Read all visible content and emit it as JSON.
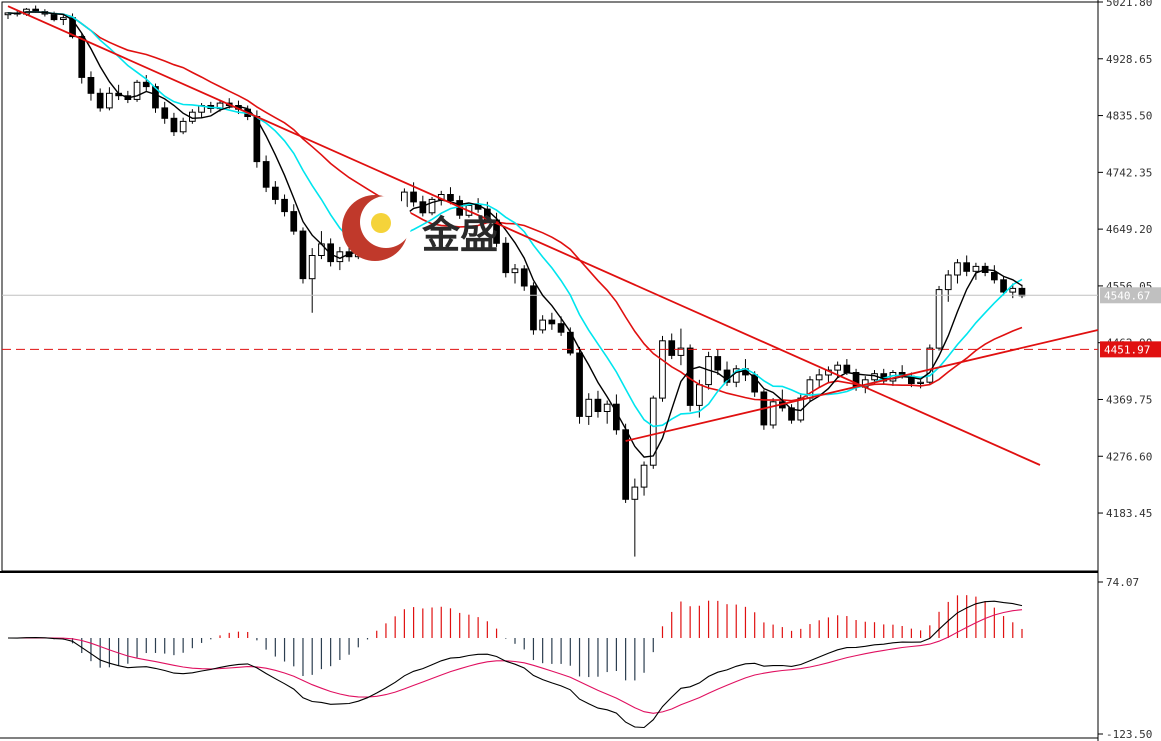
{
  "chart_data": [
    {
      "type": "candlestick",
      "y_ticks": [
        "5021.80",
        "4928.65",
        "4835.50",
        "4742.35",
        "4649.20",
        "4556.05",
        "4462.90",
        "4369.75",
        "4276.60",
        "4183.45"
      ],
      "ylim": [
        4090,
        5021.8
      ],
      "last_price": 4540.67,
      "last_price_label": "4540.67",
      "level_price": 4451.97,
      "level_price_label": "4451.97",
      "colors": {
        "up": "#ffffff",
        "down": "#000000",
        "ma_fast": "#000000",
        "ma_mid": "#00e5ee",
        "ma_slow": "#e01010",
        "trendline": "#e01010",
        "level": "#e01010",
        "current": "#c0c0c0"
      },
      "candles": [
        [
          5001,
          5005,
          4994,
          5004
        ],
        [
          5004,
          5008,
          4998,
          5002
        ],
        [
          5002,
          5012,
          4999,
          5010
        ],
        [
          5010,
          5016,
          5004,
          5006
        ],
        [
          5006,
          5010,
          4998,
          5002
        ],
        [
          5002,
          5006,
          4990,
          4993
        ],
        [
          4993,
          5000,
          4984,
          4996
        ],
        [
          4996,
          5003,
          4962,
          4965
        ],
        [
          4965,
          4970,
          4888,
          4898
        ],
        [
          4898,
          4908,
          4860,
          4872
        ],
        [
          4872,
          4880,
          4842,
          4848
        ],
        [
          4848,
          4882,
          4844,
          4872
        ],
        [
          4872,
          4886,
          4861,
          4868
        ],
        [
          4868,
          4876,
          4856,
          4862
        ],
        [
          4862,
          4894,
          4858,
          4890
        ],
        [
          4890,
          4902,
          4876,
          4883
        ],
        [
          4883,
          4888,
          4840,
          4848
        ],
        [
          4848,
          4858,
          4822,
          4831
        ],
        [
          4831,
          4840,
          4802,
          4809
        ],
        [
          4809,
          4832,
          4805,
          4826
        ],
        [
          4826,
          4846,
          4822,
          4841
        ],
        [
          4841,
          4856,
          4832,
          4852
        ],
        [
          4852,
          4858,
          4840,
          4847
        ],
        [
          4847,
          4860,
          4842,
          4856
        ],
        [
          4856,
          4864,
          4847,
          4852
        ],
        [
          4852,
          4860,
          4838,
          4846
        ],
        [
          4846,
          4852,
          4828,
          4834
        ],
        [
          4834,
          4844,
          4750,
          4760
        ],
        [
          4760,
          4770,
          4710,
          4718
        ],
        [
          4718,
          4728,
          4690,
          4698
        ],
        [
          4698,
          4706,
          4670,
          4678
        ],
        [
          4678,
          4690,
          4640,
          4646
        ],
        [
          4646,
          4652,
          4560,
          4568
        ],
        [
          4568,
          4618,
          4512,
          4606
        ],
        [
          4606,
          4646,
          4600,
          4625
        ],
        [
          4625,
          4634,
          4588,
          4596
        ],
        [
          4596,
          4620,
          4582,
          4612
        ],
        [
          4612,
          4624,
          4596,
          4604
        ],
        [
          4604,
          4626,
          4600,
          4622
        ],
        [
          4622,
          4642,
          4616,
          4636
        ],
        [
          4636,
          4662,
          4628,
          4658
        ],
        [
          4658,
          4674,
          4648,
          4668
        ],
        [
          4668,
          4692,
          4660,
          4686
        ],
        [
          4686,
          4716,
          4680,
          4710
        ],
        [
          4710,
          4726,
          4686,
          4694
        ],
        [
          4694,
          4704,
          4670,
          4676
        ],
        [
          4676,
          4702,
          4672,
          4698
        ],
        [
          4698,
          4712,
          4688,
          4706
        ],
        [
          4706,
          4718,
          4690,
          4696
        ],
        [
          4696,
          4704,
          4666,
          4672
        ],
        [
          4672,
          4690,
          4668,
          4688
        ],
        [
          4688,
          4700,
          4676,
          4682
        ],
        [
          4682,
          4694,
          4660,
          4664
        ],
        [
          4664,
          4676,
          4620,
          4626
        ],
        [
          4626,
          4636,
          4570,
          4578
        ],
        [
          4578,
          4592,
          4560,
          4584
        ],
        [
          4584,
          4590,
          4548,
          4556
        ],
        [
          4556,
          4562,
          4476,
          4484
        ],
        [
          4484,
          4508,
          4478,
          4500
        ],
        [
          4500,
          4512,
          4484,
          4494
        ],
        [
          4494,
          4506,
          4474,
          4480
        ],
        [
          4480,
          4488,
          4442,
          4446
        ],
        [
          4446,
          4456,
          4330,
          4342
        ],
        [
          4342,
          4380,
          4328,
          4370
        ],
        [
          4370,
          4384,
          4340,
          4350
        ],
        [
          4350,
          4368,
          4330,
          4362
        ],
        [
          4362,
          4378,
          4312,
          4320
        ],
        [
          4320,
          4330,
          4200,
          4206
        ],
        [
          4206,
          4240,
          4112,
          4226
        ],
        [
          4226,
          4268,
          4212,
          4262
        ],
        [
          4262,
          4376,
          4256,
          4372
        ],
        [
          4372,
          4474,
          4366,
          4466
        ],
        [
          4466,
          4478,
          4436,
          4442
        ],
        [
          4442,
          4486,
          4426,
          4454
        ],
        [
          4454,
          4460,
          4350,
          4360
        ],
        [
          4360,
          4402,
          4340,
          4394
        ],
        [
          4394,
          4448,
          4386,
          4440
        ],
        [
          4440,
          4452,
          4410,
          4418
        ],
        [
          4418,
          4432,
          4392,
          4398
        ],
        [
          4398,
          4426,
          4390,
          4420
        ],
        [
          4420,
          4436,
          4400,
          4410
        ],
        [
          4410,
          4416,
          4374,
          4382
        ],
        [
          4382,
          4386,
          4320,
          4328
        ],
        [
          4328,
          4372,
          4322,
          4366
        ],
        [
          4366,
          4386,
          4350,
          4356
        ],
        [
          4356,
          4362,
          4330,
          4336
        ],
        [
          4336,
          4380,
          4332,
          4372
        ],
        [
          4372,
          4408,
          4366,
          4402
        ],
        [
          4402,
          4420,
          4390,
          4410
        ],
        [
          4410,
          4424,
          4396,
          4418
        ],
        [
          4418,
          4432,
          4406,
          4426
        ],
        [
          4426,
          4436,
          4410,
          4414
        ],
        [
          4414,
          4420,
          4384,
          4390
        ],
        [
          4390,
          4408,
          4380,
          4402
        ],
        [
          4402,
          4418,
          4394,
          4412
        ],
        [
          4412,
          4420,
          4396,
          4400
        ],
        [
          4400,
          4418,
          4392,
          4414
        ],
        [
          4414,
          4426,
          4404,
          4408
        ],
        [
          4408,
          4414,
          4390,
          4396
        ],
        [
          4396,
          4402,
          4388,
          4398
        ],
        [
          4398,
          4460,
          4394,
          4454
        ],
        [
          4454,
          4556,
          4450,
          4550
        ],
        [
          4550,
          4582,
          4530,
          4574
        ],
        [
          4574,
          4600,
          4560,
          4594
        ],
        [
          4594,
          4606,
          4572,
          4580
        ],
        [
          4580,
          4594,
          4566,
          4588
        ],
        [
          4588,
          4594,
          4572,
          4578
        ],
        [
          4578,
          4590,
          4560,
          4566
        ],
        [
          4566,
          4572,
          4540,
          4546
        ],
        [
          4546,
          4560,
          4536,
          4552
        ],
        [
          4552,
          4558,
          4536,
          4540
        ]
      ]
    },
    {
      "type": "macd",
      "y_ticks": [
        "74.07",
        "-123.50"
      ],
      "ylim": [
        -123.5,
        74.07
      ],
      "colors": {
        "hist_up": "#e01010",
        "hist_down": "#2c3e50",
        "macd": "#000000",
        "signal": "#e01060"
      }
    }
  ],
  "logo": {
    "text": "金盛",
    "colors": {
      "outer": "#c0392b",
      "inner": "#f5d33a"
    }
  }
}
